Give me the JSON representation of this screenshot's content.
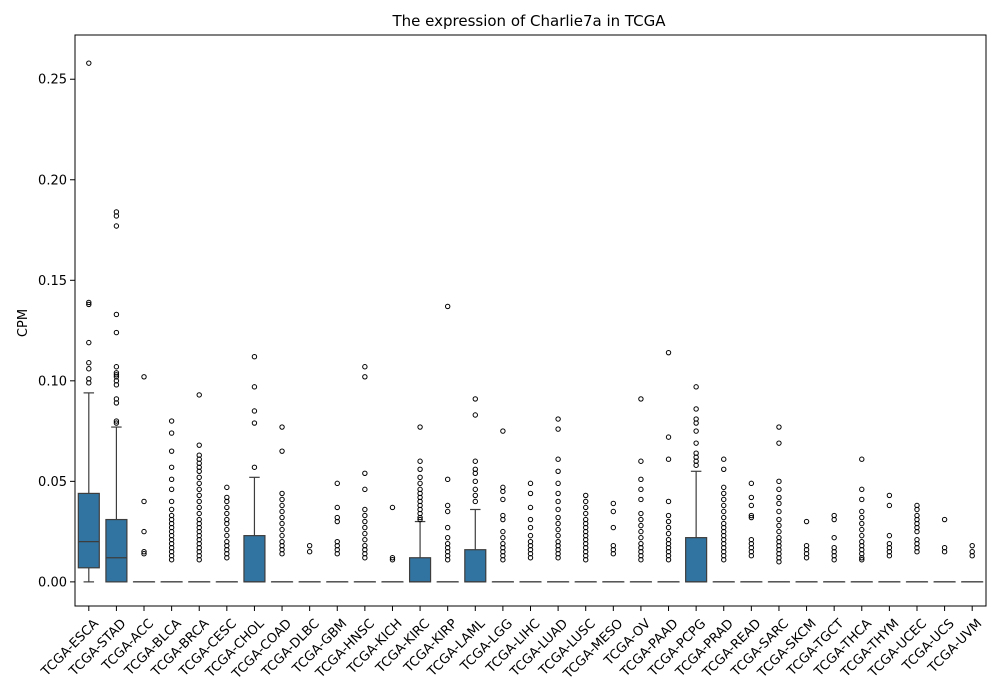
{
  "chart_data": {
    "type": "box",
    "title": "The expression of Charlie7a in TCGA",
    "xlabel": "",
    "ylabel": "CPM",
    "ylim": [
      -0.012,
      0.272
    ],
    "yticks": [
      0.0,
      0.05,
      0.1,
      0.15,
      0.2,
      0.25
    ],
    "ytick_labels": [
      "0.00",
      "0.05",
      "0.10",
      "0.15",
      "0.20",
      "0.25"
    ],
    "grid": false,
    "box_color": "#3274a1",
    "categories": [
      "TCGA-ESCA",
      "TCGA-STAD",
      "TCGA-ACC",
      "TCGA-BLCA",
      "TCGA-BRCA",
      "TCGA-CESC",
      "TCGA-CHOL",
      "TCGA-COAD",
      "TCGA-DLBC",
      "TCGA-GBM",
      "TCGA-HNSC",
      "TCGA-KICH",
      "TCGA-KIRC",
      "TCGA-KIRP",
      "TCGA-LAML",
      "TCGA-LGG",
      "TCGA-LIHC",
      "TCGA-LUAD",
      "TCGA-LUSC",
      "TCGA-MESO",
      "TCGA-OV",
      "TCGA-PAAD",
      "TCGA-PCPG",
      "TCGA-PRAD",
      "TCGA-READ",
      "TCGA-SARC",
      "TCGA-SKCM",
      "TCGA-TGCT",
      "TCGA-THCA",
      "TCGA-THYM",
      "TCGA-UCEC",
      "TCGA-UCS",
      "TCGA-UVM"
    ],
    "boxes": [
      {
        "q1": 0.007,
        "median": 0.02,
        "q3": 0.044,
        "whislo": 0.0,
        "whishi": 0.094,
        "fliers": [
          0.258,
          0.139,
          0.138,
          0.119,
          0.109,
          0.106,
          0.101,
          0.099
        ]
      },
      {
        "q1": 0.0,
        "median": 0.012,
        "q3": 0.031,
        "whislo": 0.0,
        "whishi": 0.077,
        "fliers": [
          0.184,
          0.182,
          0.177,
          0.133,
          0.124,
          0.107,
          0.104,
          0.103,
          0.102,
          0.1,
          0.098,
          0.091,
          0.089,
          0.08,
          0.079
        ]
      },
      {
        "q1": 0.0,
        "median": 0.0,
        "q3": 0.0,
        "whislo": 0.0,
        "whishi": 0.0,
        "fliers": [
          0.102,
          0.04,
          0.025,
          0.015,
          0.014
        ]
      },
      {
        "q1": 0.0,
        "median": 0.0,
        "q3": 0.0,
        "whislo": 0.0,
        "whishi": 0.0,
        "fliers": [
          0.08,
          0.074,
          0.065,
          0.057,
          0.051,
          0.046,
          0.04,
          0.036,
          0.033,
          0.031,
          0.029,
          0.027,
          0.025,
          0.023,
          0.021,
          0.019,
          0.017,
          0.015,
          0.013,
          0.011
        ]
      },
      {
        "q1": 0.0,
        "median": 0.0,
        "q3": 0.0,
        "whislo": 0.0,
        "whishi": 0.0,
        "fliers": [
          0.093,
          0.068,
          0.063,
          0.061,
          0.059,
          0.057,
          0.055,
          0.052,
          0.049,
          0.046,
          0.043,
          0.04,
          0.037,
          0.034,
          0.031,
          0.029,
          0.027,
          0.025,
          0.023,
          0.021,
          0.019,
          0.017,
          0.015,
          0.013,
          0.011
        ]
      },
      {
        "q1": 0.0,
        "median": 0.0,
        "q3": 0.0,
        "whislo": 0.0,
        "whishi": 0.0,
        "fliers": [
          0.047,
          0.042,
          0.04,
          0.037,
          0.034,
          0.031,
          0.029,
          0.026,
          0.023,
          0.02,
          0.018,
          0.016,
          0.014,
          0.012
        ]
      },
      {
        "q1": 0.0,
        "median": 0.0,
        "q3": 0.023,
        "whislo": 0.0,
        "whishi": 0.052,
        "fliers": [
          0.112,
          0.097,
          0.085,
          0.079,
          0.057
        ]
      },
      {
        "q1": 0.0,
        "median": 0.0,
        "q3": 0.0,
        "whislo": 0.0,
        "whishi": 0.0,
        "fliers": [
          0.077,
          0.065,
          0.044,
          0.041,
          0.038,
          0.035,
          0.032,
          0.029,
          0.026,
          0.023,
          0.02,
          0.018,
          0.016,
          0.014
        ]
      },
      {
        "q1": 0.0,
        "median": 0.0,
        "q3": 0.0,
        "whislo": 0.0,
        "whishi": 0.0,
        "fliers": [
          0.018,
          0.015
        ]
      },
      {
        "q1": 0.0,
        "median": 0.0,
        "q3": 0.0,
        "whislo": 0.0,
        "whishi": 0.0,
        "fliers": [
          0.049,
          0.037,
          0.032,
          0.03,
          0.02,
          0.018,
          0.016,
          0.014
        ]
      },
      {
        "q1": 0.0,
        "median": 0.0,
        "q3": 0.0,
        "whislo": 0.0,
        "whishi": 0.0,
        "fliers": [
          0.107,
          0.102,
          0.054,
          0.046,
          0.036,
          0.033,
          0.03,
          0.027,
          0.024,
          0.021,
          0.018,
          0.016,
          0.014,
          0.012
        ]
      },
      {
        "q1": 0.0,
        "median": 0.0,
        "q3": 0.0,
        "whislo": 0.0,
        "whishi": 0.0,
        "fliers": [
          0.037,
          0.012,
          0.011
        ]
      },
      {
        "q1": 0.0,
        "median": 0.0,
        "q3": 0.012,
        "whislo": 0.0,
        "whishi": 0.03,
        "fliers": [
          0.077,
          0.06,
          0.056,
          0.052,
          0.049,
          0.046,
          0.044,
          0.042,
          0.04,
          0.038,
          0.036,
          0.034,
          0.032,
          0.031
        ]
      },
      {
        "q1": 0.0,
        "median": 0.0,
        "q3": 0.0,
        "whislo": 0.0,
        "whishi": 0.0,
        "fliers": [
          0.137,
          0.051,
          0.038,
          0.035,
          0.027,
          0.022,
          0.019,
          0.017,
          0.015,
          0.013,
          0.011
        ]
      },
      {
        "q1": 0.0,
        "median": 0.0,
        "q3": 0.016,
        "whislo": 0.0,
        "whishi": 0.036,
        "fliers": [
          0.091,
          0.083,
          0.06,
          0.056,
          0.054,
          0.05,
          0.046,
          0.043,
          0.04
        ]
      },
      {
        "q1": 0.0,
        "median": 0.0,
        "q3": 0.0,
        "whislo": 0.0,
        "whishi": 0.0,
        "fliers": [
          0.075,
          0.047,
          0.045,
          0.041,
          0.033,
          0.031,
          0.025,
          0.022,
          0.019,
          0.017,
          0.015,
          0.013,
          0.011
        ]
      },
      {
        "q1": 0.0,
        "median": 0.0,
        "q3": 0.0,
        "whislo": 0.0,
        "whishi": 0.0,
        "fliers": [
          0.049,
          0.044,
          0.037,
          0.031,
          0.027,
          0.023,
          0.02,
          0.018,
          0.016,
          0.014,
          0.012
        ]
      },
      {
        "q1": 0.0,
        "median": 0.0,
        "q3": 0.0,
        "whislo": 0.0,
        "whishi": 0.0,
        "fliers": [
          0.081,
          0.076,
          0.061,
          0.055,
          0.049,
          0.044,
          0.04,
          0.036,
          0.032,
          0.029,
          0.026,
          0.023,
          0.02,
          0.018,
          0.016,
          0.014,
          0.012
        ]
      },
      {
        "q1": 0.0,
        "median": 0.0,
        "q3": 0.0,
        "whislo": 0.0,
        "whishi": 0.0,
        "fliers": [
          0.043,
          0.04,
          0.037,
          0.034,
          0.031,
          0.029,
          0.027,
          0.025,
          0.023,
          0.021,
          0.019,
          0.017,
          0.015,
          0.013,
          0.011
        ]
      },
      {
        "q1": 0.0,
        "median": 0.0,
        "q3": 0.0,
        "whislo": 0.0,
        "whishi": 0.0,
        "fliers": [
          0.039,
          0.035,
          0.027,
          0.018,
          0.016,
          0.014
        ]
      },
      {
        "q1": 0.0,
        "median": 0.0,
        "q3": 0.0,
        "whislo": 0.0,
        "whishi": 0.0,
        "fliers": [
          0.091,
          0.06,
          0.051,
          0.046,
          0.041,
          0.034,
          0.031,
          0.028,
          0.025,
          0.022,
          0.019,
          0.017,
          0.015,
          0.013,
          0.011
        ]
      },
      {
        "q1": 0.0,
        "median": 0.0,
        "q3": 0.0,
        "whislo": 0.0,
        "whishi": 0.0,
        "fliers": [
          0.114,
          0.072,
          0.061,
          0.04,
          0.033,
          0.03,
          0.027,
          0.024,
          0.021,
          0.019,
          0.017,
          0.015,
          0.013,
          0.011
        ]
      },
      {
        "q1": 0.0,
        "median": 0.0,
        "q3": 0.022,
        "whislo": 0.0,
        "whishi": 0.055,
        "fliers": [
          0.097,
          0.086,
          0.081,
          0.079,
          0.075,
          0.069,
          0.064,
          0.062,
          0.06,
          0.058
        ]
      },
      {
        "q1": 0.0,
        "median": 0.0,
        "q3": 0.0,
        "whislo": 0.0,
        "whishi": 0.0,
        "fliers": [
          0.061,
          0.056,
          0.047,
          0.044,
          0.041,
          0.038,
          0.035,
          0.032,
          0.029,
          0.027,
          0.025,
          0.023,
          0.021,
          0.019,
          0.017,
          0.015,
          0.013,
          0.011
        ]
      },
      {
        "q1": 0.0,
        "median": 0.0,
        "q3": 0.0,
        "whislo": 0.0,
        "whishi": 0.0,
        "fliers": [
          0.049,
          0.042,
          0.038,
          0.033,
          0.032,
          0.021,
          0.019,
          0.017,
          0.015,
          0.013
        ]
      },
      {
        "q1": 0.0,
        "median": 0.0,
        "q3": 0.0,
        "whislo": 0.0,
        "whishi": 0.0,
        "fliers": [
          0.077,
          0.069,
          0.05,
          0.046,
          0.042,
          0.039,
          0.035,
          0.031,
          0.028,
          0.025,
          0.022,
          0.02,
          0.018,
          0.016,
          0.014,
          0.012,
          0.01
        ]
      },
      {
        "q1": 0.0,
        "median": 0.0,
        "q3": 0.0,
        "whislo": 0.0,
        "whishi": 0.0,
        "fliers": [
          0.03,
          0.018,
          0.016,
          0.014,
          0.012
        ]
      },
      {
        "q1": 0.0,
        "median": 0.0,
        "q3": 0.0,
        "whislo": 0.0,
        "whishi": 0.0,
        "fliers": [
          0.033,
          0.031,
          0.022,
          0.017,
          0.015,
          0.013,
          0.011
        ]
      },
      {
        "q1": 0.0,
        "median": 0.0,
        "q3": 0.0,
        "whislo": 0.0,
        "whishi": 0.0,
        "fliers": [
          0.061,
          0.046,
          0.041,
          0.035,
          0.032,
          0.029,
          0.026,
          0.023,
          0.02,
          0.018,
          0.016,
          0.014,
          0.012,
          0.011
        ]
      },
      {
        "q1": 0.0,
        "median": 0.0,
        "q3": 0.0,
        "whislo": 0.0,
        "whishi": 0.0,
        "fliers": [
          0.043,
          0.038,
          0.023,
          0.019,
          0.017,
          0.015,
          0.013
        ]
      },
      {
        "q1": 0.0,
        "median": 0.0,
        "q3": 0.0,
        "whislo": 0.0,
        "whishi": 0.0,
        "fliers": [
          0.038,
          0.036,
          0.033,
          0.031,
          0.029,
          0.027,
          0.025,
          0.021,
          0.019,
          0.017,
          0.015
        ]
      },
      {
        "q1": 0.0,
        "median": 0.0,
        "q3": 0.0,
        "whislo": 0.0,
        "whishi": 0.0,
        "fliers": [
          0.031,
          0.017,
          0.015
        ]
      },
      {
        "q1": 0.0,
        "median": 0.0,
        "q3": 0.0,
        "whislo": 0.0,
        "whishi": 0.0,
        "fliers": [
          0.018,
          0.015,
          0.013
        ]
      }
    ]
  }
}
